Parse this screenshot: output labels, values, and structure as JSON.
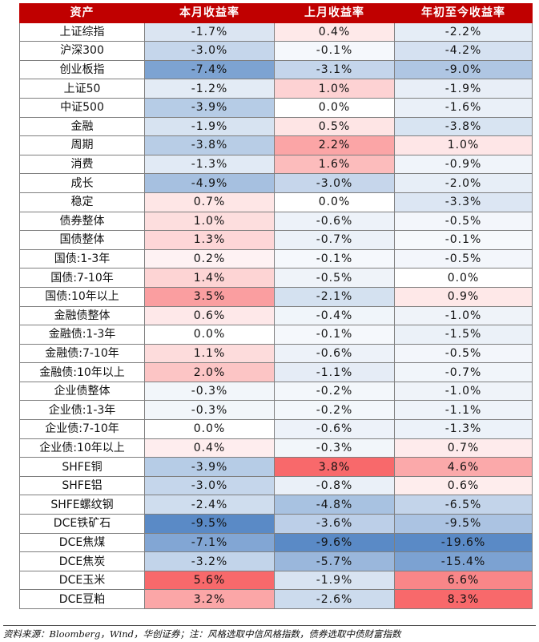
{
  "headers": [
    "资产",
    "本月收益率",
    "上月收益率",
    "年初至今收益率"
  ],
  "rows": [
    {
      "asset": "上证综指",
      "m": -1.7,
      "lm": 0.4,
      "ytd": -2.2
    },
    {
      "asset": "沪深300",
      "m": -3.0,
      "lm": -0.1,
      "ytd": -4.2
    },
    {
      "asset": "创业板指",
      "m": -7.4,
      "lm": -3.1,
      "ytd": -9.0
    },
    {
      "asset": "上证50",
      "m": -1.2,
      "lm": 1.0,
      "ytd": -1.9
    },
    {
      "asset": "中证500",
      "m": -3.9,
      "lm": 0.0,
      "ytd": -1.6
    },
    {
      "asset": "金融",
      "m": -1.9,
      "lm": 0.5,
      "ytd": -3.8
    },
    {
      "asset": "周期",
      "m": -3.8,
      "lm": 2.2,
      "ytd": 1.0
    },
    {
      "asset": "消费",
      "m": -1.3,
      "lm": 1.6,
      "ytd": -0.9
    },
    {
      "asset": "成长",
      "m": -4.9,
      "lm": -3.0,
      "ytd": -2.0
    },
    {
      "asset": "稳定",
      "m": 0.7,
      "lm": 0.0,
      "ytd": -3.3
    },
    {
      "asset": "债券整体",
      "m": 1.0,
      "lm": -0.6,
      "ytd": -0.5
    },
    {
      "asset": "国债整体",
      "m": 1.3,
      "lm": -0.7,
      "ytd": -0.1
    },
    {
      "asset": "国债:1-3年",
      "m": 0.2,
      "lm": -0.1,
      "ytd": -0.5
    },
    {
      "asset": "国债:7-10年",
      "m": 1.4,
      "lm": -0.5,
      "ytd": 0.0
    },
    {
      "asset": "国债:10年以上",
      "m": 3.5,
      "lm": -2.1,
      "ytd": 0.9
    },
    {
      "asset": "金融债整体",
      "m": 0.6,
      "lm": -0.4,
      "ytd": -1.0
    },
    {
      "asset": "金融债:1-3年",
      "m": 0.0,
      "lm": -0.1,
      "ytd": -1.5
    },
    {
      "asset": "金融债:7-10年",
      "m": 1.1,
      "lm": -0.6,
      "ytd": -0.5
    },
    {
      "asset": "金融债:10年以上",
      "m": 2.0,
      "lm": -1.1,
      "ytd": -0.7
    },
    {
      "asset": "企业债整体",
      "m": -0.3,
      "lm": -0.2,
      "ytd": -1.0
    },
    {
      "asset": "企业债:1-3年",
      "m": -0.3,
      "lm": -0.2,
      "ytd": -1.1
    },
    {
      "asset": "企业债:7-10年",
      "m": 0.0,
      "lm": -0.6,
      "ytd": -1.3
    },
    {
      "asset": "企业债:10年以上",
      "m": 0.4,
      "lm": -0.3,
      "ytd": 0.7
    },
    {
      "asset": "SHFE铜",
      "m": -3.9,
      "lm": 3.8,
      "ytd": 4.6
    },
    {
      "asset": "SHFE铝",
      "m": -3.0,
      "lm": -0.8,
      "ytd": 0.6
    },
    {
      "asset": "SHFE螺纹钢",
      "m": -2.4,
      "lm": -4.8,
      "ytd": -6.5
    },
    {
      "asset": "DCE铁矿石",
      "m": -9.5,
      "lm": -3.6,
      "ytd": -9.5
    },
    {
      "asset": "DCE焦煤",
      "m": -7.1,
      "lm": -9.6,
      "ytd": -19.6
    },
    {
      "asset": "DCE焦炭",
      "m": -3.2,
      "lm": -5.7,
      "ytd": -15.4
    },
    {
      "asset": "DCE玉米",
      "m": 5.6,
      "lm": -1.9,
      "ytd": 6.6
    },
    {
      "asset": "DCE豆粕",
      "m": 3.2,
      "lm": -2.6,
      "ytd": 8.3
    }
  ],
  "footer": "资料来源：Bloomberg，Wind，华创证券；注：风格选取中信风格指数，债券选取中债财富指数",
  "colors": {
    "header_bg": "#c00000",
    "positive": "#f8696b",
    "negative": "#5a8ac6",
    "neutral": "#ffffff"
  }
}
